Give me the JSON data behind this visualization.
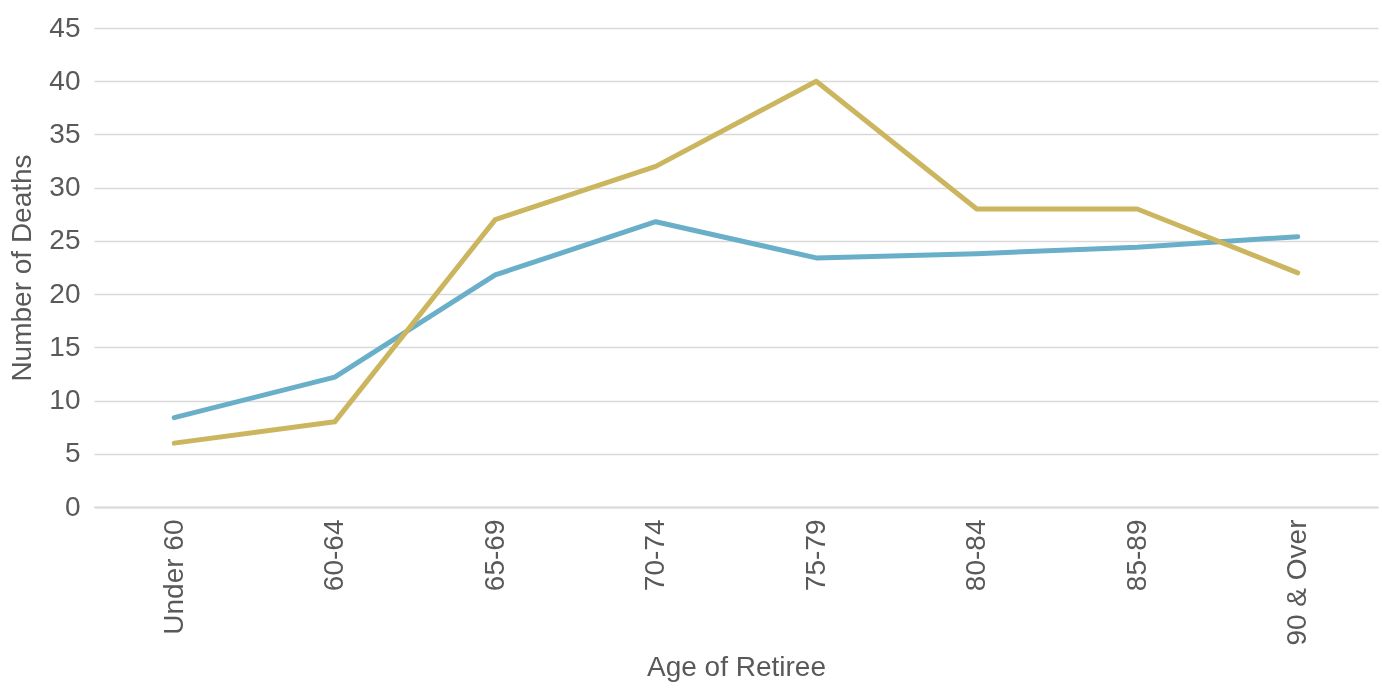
{
  "chart_data": {
    "type": "line",
    "xlabel": "Age of Retiree",
    "ylabel": "Number of Deaths",
    "categories": [
      "Under 60",
      "60-64",
      "65-69",
      "70-74",
      "75-79",
      "80-84",
      "85-89",
      "90 & Over"
    ],
    "series": [
      {
        "color": "#6aafc9",
        "values": [
          8.4,
          12.2,
          21.8,
          26.8,
          23.4,
          23.8,
          24.4,
          25.4
        ]
      },
      {
        "color": "#cbb65f",
        "values": [
          6,
          8,
          27,
          32,
          40,
          28,
          28,
          22
        ]
      }
    ],
    "ylim": [
      0,
      45
    ],
    "yticks": [
      0,
      5,
      10,
      15,
      20,
      25,
      30,
      35,
      40,
      45
    ],
    "grid": "y",
    "legend": false,
    "marker": "none",
    "line_style": "solid"
  }
}
